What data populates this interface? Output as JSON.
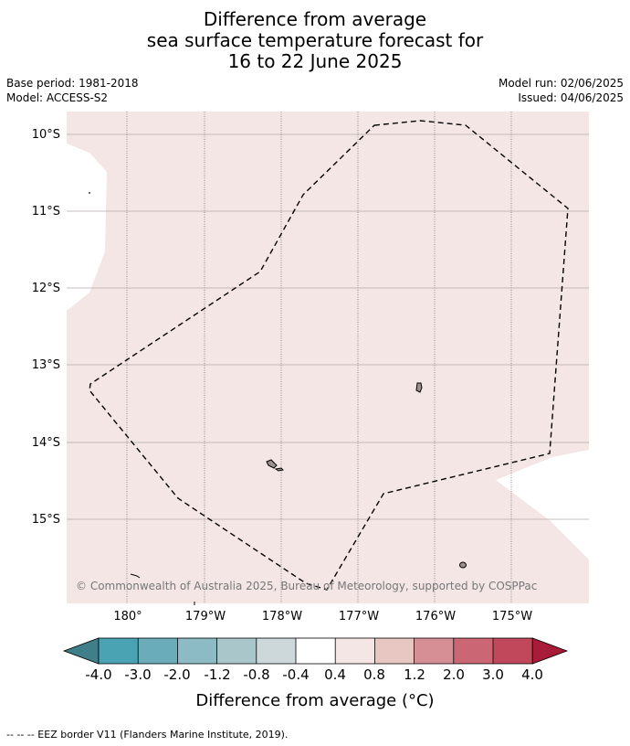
{
  "title": {
    "line1": "Difference from average",
    "line2": "sea surface temperature forecast for",
    "line3": "16 to 22 June 2025"
  },
  "meta": {
    "base_period": "Base period: 1981-2018",
    "model": "Model: ACCESS-S2",
    "model_run": "Model run: 02/06/2025",
    "issued": "Issued: 04/06/2025"
  },
  "map": {
    "latitude_labels": [
      "10°S",
      "11°S",
      "12°S",
      "13°S",
      "14°S",
      "15°S"
    ],
    "longitude_labels": [
      "180°",
      "179°W",
      "178°W",
      "177°W",
      "176°W",
      "175°W"
    ],
    "copyright": "© Commonwealth of Australia 2025, Bureau of Meteorology, supported by COSPPac",
    "ocean_fill": "#f4e6e5",
    "land_fill": "#9e8f8f"
  },
  "colorbar": {
    "labels": [
      "-4.0",
      "-3.0",
      "-2.0",
      "-1.2",
      "-0.8",
      "-0.4",
      "0.4",
      "0.8",
      "1.2",
      "2.0",
      "3.0",
      "4.0"
    ],
    "colors": [
      "#3f7f89",
      "#4aa3b3",
      "#6aacb9",
      "#8cbbc6",
      "#a9c6cb",
      "#cdd8da",
      "#ffffff",
      "#f4e6e5",
      "#e8c6c2",
      "#d68f95",
      "#cb6674",
      "#c1485a",
      "#a81c3a"
    ],
    "title": "Difference from average (°C)"
  },
  "footnote": "--  --  -- EEZ border V11 (Flanders Marine Institute, 2019)."
}
